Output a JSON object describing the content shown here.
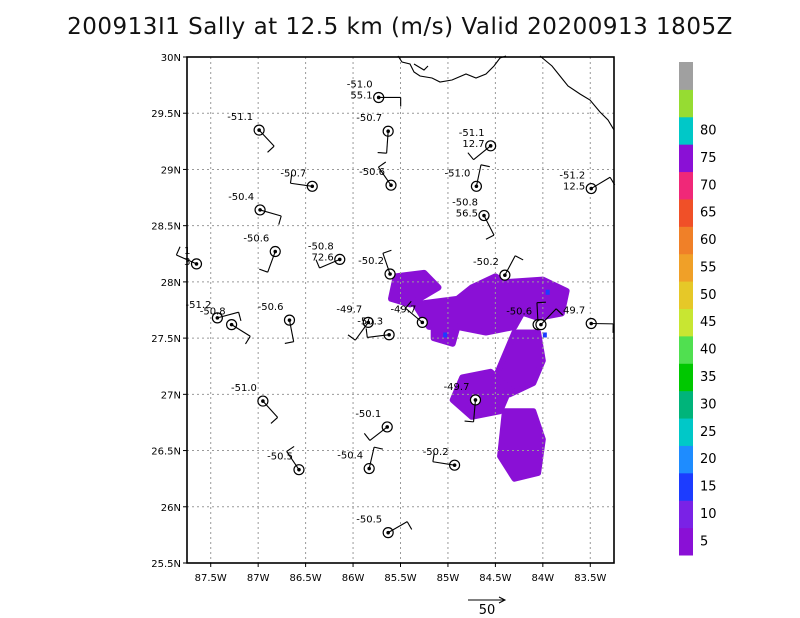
{
  "title": "200913I1 Sally at 12.5 km (m/s) Valid 20200913 1805Z",
  "map": {
    "lon_range": [
      -87.75,
      -83.25
    ],
    "lat_range": [
      25.5,
      30.0
    ],
    "lon_ticks": [
      "87.5W",
      "87W",
      "86.5W",
      "86W",
      "85.5W",
      "85W",
      "84.5W",
      "84W",
      "83.5W"
    ],
    "lon_tick_values": [
      -87.5,
      -87.0,
      -86.5,
      -86.0,
      -85.5,
      -85.0,
      -84.5,
      -84.0,
      -83.5
    ],
    "lat_ticks": [
      "30N",
      "29.5N",
      "29N",
      "28.5N",
      "28N",
      "27.5N",
      "27N",
      "26.5N",
      "26N",
      "25.5N"
    ],
    "lat_tick_values": [
      30.0,
      29.5,
      29.0,
      28.5,
      28.0,
      27.5,
      27.0,
      26.5,
      26.0,
      25.5
    ],
    "grid": true,
    "frame_color": "#000000",
    "grid_color": "#9a9a9a",
    "coastline_color": "#000000",
    "field_color": "#8a10d6"
  },
  "stations": [
    {
      "lon": -85.73,
      "lat": 29.64,
      "label1": "-51.0",
      "label2": "55.1"
    },
    {
      "lon": -86.99,
      "lat": 29.35,
      "label1": "-51.1",
      "label2": ""
    },
    {
      "lon": -85.63,
      "lat": 29.34,
      "label1": "-50.7",
      "label2": ""
    },
    {
      "lon": -84.55,
      "lat": 29.21,
      "label1": "-51.1",
      "label2": "12.7"
    },
    {
      "lon": -86.43,
      "lat": 28.85,
      "label1": "-50.7",
      "label2": ""
    },
    {
      "lon": -85.6,
      "lat": 28.86,
      "label1": "-50.6",
      "label2": ""
    },
    {
      "lon": -84.7,
      "lat": 28.85,
      "label1": "-51.0",
      "label2": ""
    },
    {
      "lon": -83.49,
      "lat": 28.83,
      "label1": "-51.2",
      "label2": "12.5"
    },
    {
      "lon": -86.98,
      "lat": 28.64,
      "label1": "-50.4",
      "label2": ""
    },
    {
      "lon": -84.62,
      "lat": 28.59,
      "label1": "-50.8",
      "label2": "56.5"
    },
    {
      "lon": -86.82,
      "lat": 28.27,
      "label1": "-50.6",
      "label2": ""
    },
    {
      "lon": -86.14,
      "lat": 28.2,
      "label1": "-50.8",
      "label2": "72.6"
    },
    {
      "lon": -87.65,
      "lat": 28.16,
      "label1": "1",
      "label2": "3"
    },
    {
      "lon": -85.61,
      "lat": 28.07,
      "label1": "-50.2",
      "label2": ""
    },
    {
      "lon": -84.4,
      "lat": 28.06,
      "label1": "-50.2",
      "label2": ""
    },
    {
      "lon": -87.43,
      "lat": 27.68,
      "label1": "-51.2",
      "label2": ""
    },
    {
      "lon": -87.28,
      "lat": 27.62,
      "label1": "-50.8",
      "label2": ""
    },
    {
      "lon": -86.67,
      "lat": 27.66,
      "label1": "-50.6",
      "label2": ""
    },
    {
      "lon": -85.84,
      "lat": 27.64,
      "label1": "-49.7",
      "label2": ""
    },
    {
      "lon": -85.62,
      "lat": 27.53,
      "label1": "-50.3",
      "label2": ""
    },
    {
      "lon": -85.27,
      "lat": 27.64,
      "label1": "-49.7",
      "label2": ""
    },
    {
      "lon": -84.05,
      "lat": 27.62,
      "label1": "-50.6",
      "label2": ""
    },
    {
      "lon": -84.02,
      "lat": 27.62,
      "label1": "",
      "label2": ""
    },
    {
      "lon": -83.49,
      "lat": 27.63,
      "label1": "49.7",
      "label2": ""
    },
    {
      "lon": -86.95,
      "lat": 26.94,
      "label1": "-51.0",
      "label2": ""
    },
    {
      "lon": -84.71,
      "lat": 26.95,
      "label1": "-49.7",
      "label2": ""
    },
    {
      "lon": -85.64,
      "lat": 26.71,
      "label1": "-50.1",
      "label2": ""
    },
    {
      "lon": -84.93,
      "lat": 26.37,
      "label1": "-50.2",
      "label2": ""
    },
    {
      "lon": -86.57,
      "lat": 26.33,
      "label1": "-50.5",
      "label2": ""
    },
    {
      "lon": -85.83,
      "lat": 26.34,
      "label1": "-50.4",
      "label2": ""
    },
    {
      "lon": -85.63,
      "lat": 25.77,
      "label1": "-50.5",
      "label2": ""
    }
  ],
  "colorbar": {
    "labels": [
      "5",
      "10",
      "15",
      "20",
      "25",
      "30",
      "35",
      "40",
      "45",
      "50",
      "55",
      "60",
      "65",
      "70",
      "75",
      "80"
    ],
    "colors": [
      "#8a10d6",
      "#7a22e6",
      "#1c3cff",
      "#1e8cff",
      "#00c8c8",
      "#00b47a",
      "#00c800",
      "#50e050",
      "#c8e632",
      "#e6c828",
      "#f0a028",
      "#f08028",
      "#f05028",
      "#f02878",
      "#8a10d6",
      "#00c8c8",
      "#96dc32",
      "#a0a0a0"
    ]
  },
  "reference_vector": {
    "label": "50"
  }
}
